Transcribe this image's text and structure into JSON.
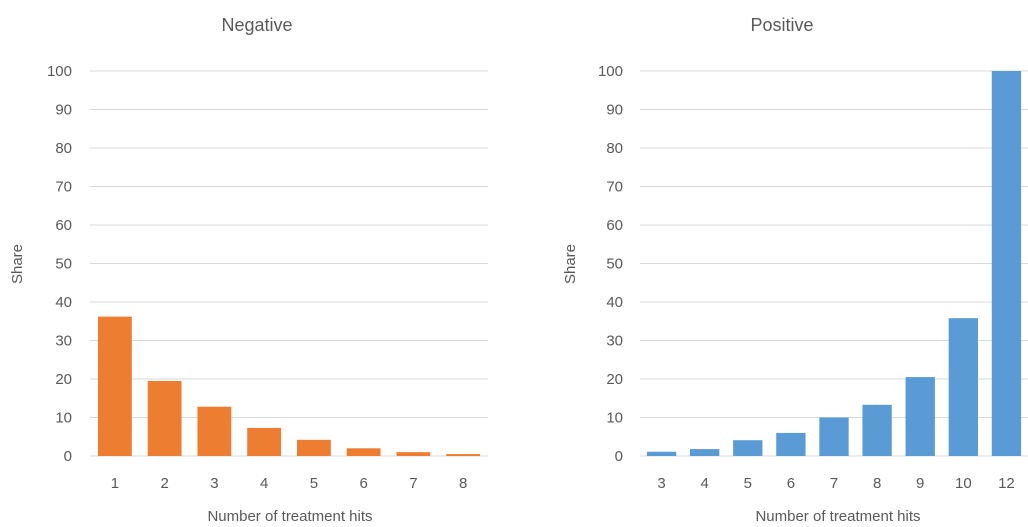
{
  "chart_data": [
    {
      "type": "bar",
      "title": "Negative",
      "xlabel": "Number of treatment hits",
      "ylabel": "Share",
      "ylim": [
        0,
        100
      ],
      "yticks": [
        0,
        10,
        20,
        30,
        40,
        50,
        60,
        70,
        80,
        90,
        100
      ],
      "grid": true,
      "categories": [
        "1",
        "2",
        "3",
        "4",
        "5",
        "6",
        "7",
        "8"
      ],
      "values": [
        36.2,
        19.5,
        12.8,
        7.3,
        4.2,
        2.0,
        1.0,
        0.5
      ],
      "color": "#ED7D31"
    },
    {
      "type": "bar",
      "title": "Positive",
      "xlabel": "Number of treatment hits",
      "ylabel": "Share",
      "ylim": [
        0,
        100
      ],
      "yticks": [
        0,
        10,
        20,
        30,
        40,
        50,
        60,
        70,
        80,
        90,
        100
      ],
      "grid": true,
      "categories": [
        "3",
        "4",
        "5",
        "6",
        "7",
        "8",
        "9",
        "10",
        "12"
      ],
      "values": [
        1.1,
        1.8,
        4.1,
        6.0,
        10.0,
        13.3,
        20.5,
        35.8,
        100
      ],
      "color": "#5B9BD5"
    }
  ]
}
